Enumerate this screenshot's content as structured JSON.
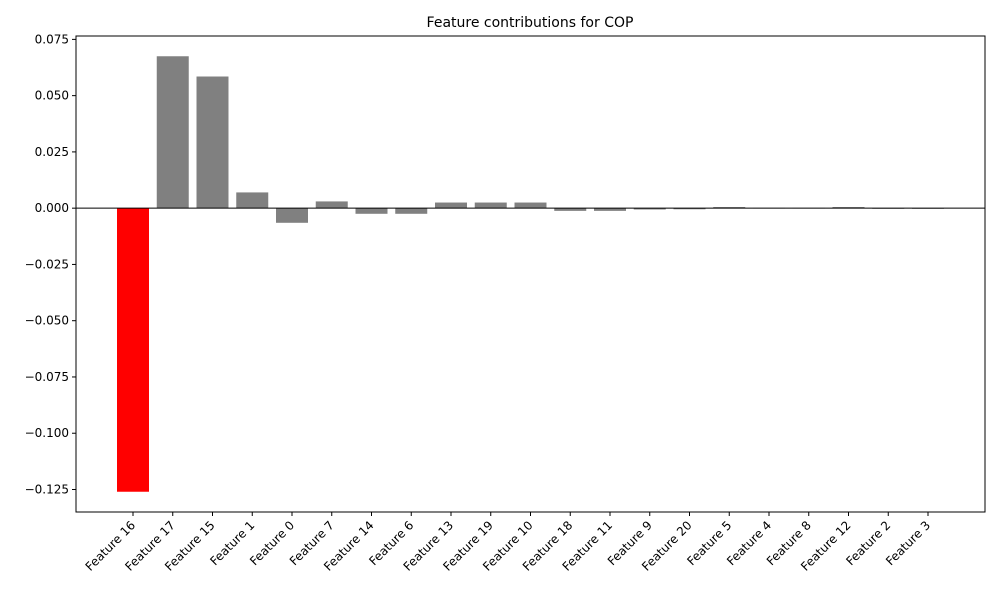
{
  "chart_data": {
    "type": "bar",
    "title": "Feature contributions for COP",
    "xlabel": "",
    "ylabel": "",
    "categories": [
      "Feature 16",
      "Feature 17",
      "Feature 15",
      "Feature 1",
      "Feature 0",
      "Feature 7",
      "Feature 14",
      "Feature 6",
      "Feature 13",
      "Feature 19",
      "Feature 10",
      "Feature 18",
      "Feature 11",
      "Feature 9",
      "Feature 20",
      "Feature 5",
      "Feature 4",
      "Feature 8",
      "Feature 12",
      "Feature 2",
      "Feature 3"
    ],
    "values": [
      -0.126,
      0.0675,
      0.0585,
      0.007,
      -0.0065,
      0.003,
      -0.0025,
      -0.0025,
      0.0025,
      0.0025,
      0.0025,
      -0.0012,
      -0.0012,
      -0.0006,
      -0.0005,
      0.0005,
      0.0001,
      0.0001,
      0.0005,
      0.0,
      0.0
    ],
    "bar_colors": [
      "#ff0000",
      "#808080",
      "#808080",
      "#808080",
      "#808080",
      "#808080",
      "#808080",
      "#808080",
      "#808080",
      "#808080",
      "#808080",
      "#808080",
      "#808080",
      "#808080",
      "#808080",
      "#808080",
      "#808080",
      "#808080",
      "#808080",
      "#808080",
      "#808080"
    ],
    "ylim": [
      -0.135,
      0.0765
    ],
    "yticks": [
      0.075,
      0.05,
      0.025,
      0.0,
      -0.025,
      -0.05,
      -0.075,
      -0.1,
      -0.125
    ],
    "ytick_labels": [
      "0.075",
      "0.050",
      "0.025",
      "0.000",
      "−0.025",
      "−0.050",
      "−0.075",
      "−0.100",
      "−0.125"
    ],
    "zero_line": true,
    "grid": false,
    "legend": "none"
  }
}
